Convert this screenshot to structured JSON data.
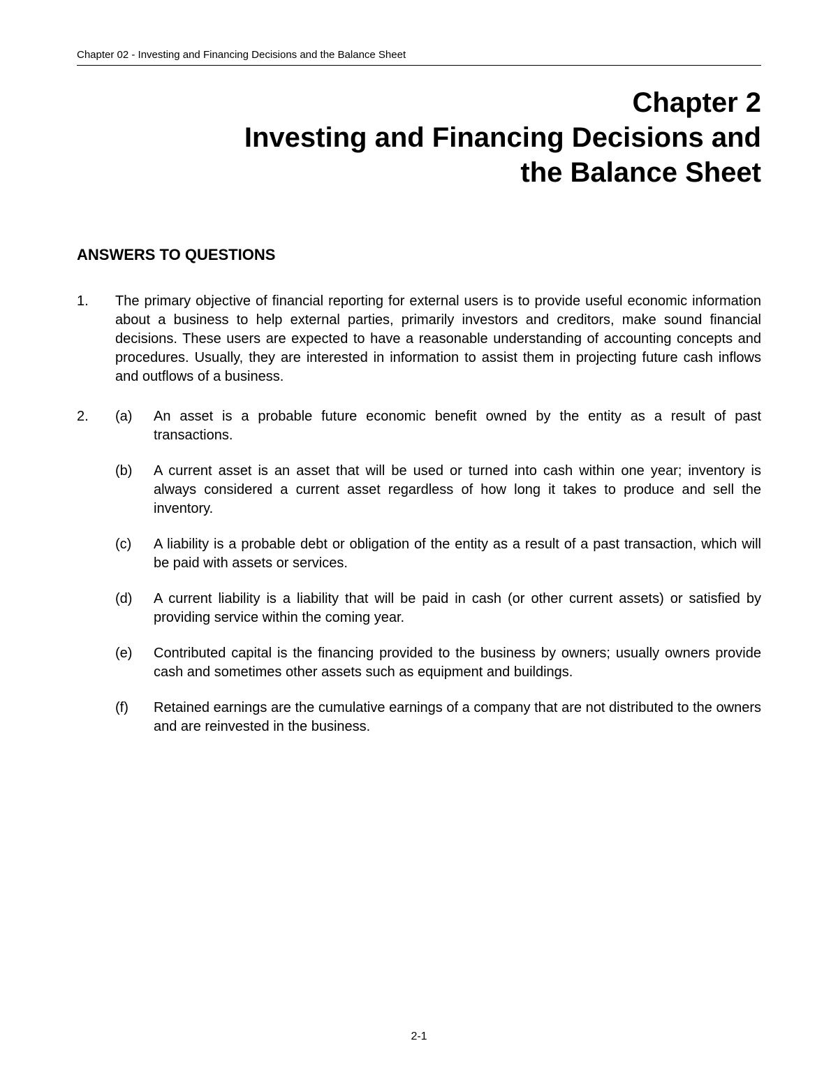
{
  "header": {
    "text": "Chapter 02 - Investing and Financing Decisions and the Balance Sheet"
  },
  "title": {
    "line1": "Chapter 2",
    "line2": "Investing and Financing Decisions and",
    "line3": "the Balance Sheet"
  },
  "section_heading": "ANSWERS TO QUESTIONS",
  "questions": [
    {
      "number": "1.",
      "text": "The primary objective of financial reporting for external users is to provide useful economic information about a business to help external parties, primarily investors and creditors, make sound financial decisions.  These users are expected to have a reasonable understanding of accounting concepts and procedures.  Usually, they are interested in information to assist them in projecting future cash inflows and outflows of a business."
    },
    {
      "number": "2.",
      "subitems": [
        {
          "label": "(a)",
          "text": "An asset is a probable future economic benefit owned by the entity as a result of past transactions."
        },
        {
          "label": "(b)",
          "text": "A current asset is an asset that will be used or turned into cash within one year; inventory is always considered a current asset regardless of how long it takes to produce and sell the inventory."
        },
        {
          "label": "(c)",
          "text": "A liability is a probable debt or obligation of the entity as a result of a past transaction, which will be paid with assets or services."
        },
        {
          "label": "(d)",
          "text": "A current liability is a liability that will be paid in cash (or other current assets) or satisfied by providing service within the coming year."
        },
        {
          "label": "(e)",
          "text": "Contributed capital is the financing provided to the business by owners; usually owners provide cash and sometimes other assets such as equipment and buildings."
        },
        {
          "label": "(f)",
          "text": "Retained earnings are the cumulative earnings of a company that are not distributed to the owners and are reinvested in the business."
        }
      ]
    }
  ],
  "page_number": "2-1"
}
